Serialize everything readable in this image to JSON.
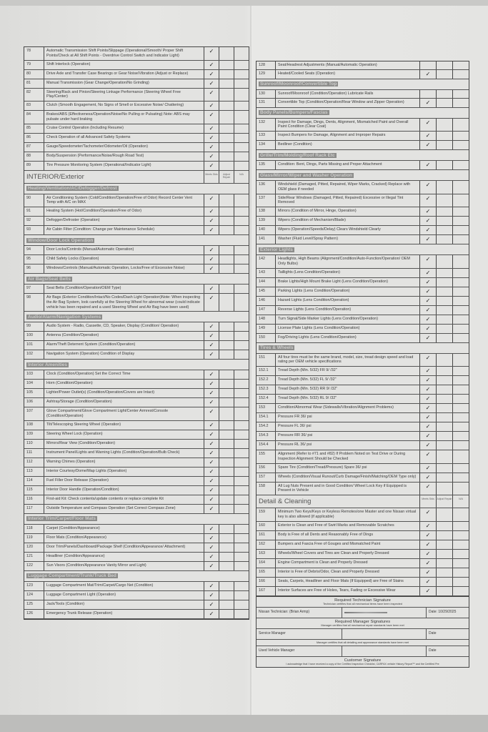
{
  "column_headers": {
    "meets": "Meets Stds",
    "adjust": "Adjust Repair",
    "na": "N/A"
  },
  "check_glyph": "✓",
  "left": [
    {
      "type": "row",
      "num": "78",
      "text": "Automatic Transmission Shift Points/Slippage (Operational/Smooth/ Proper Shift Points/Check at All Shift Points - Overdrive Control Switch and Indicator Light)",
      "check": true
    },
    {
      "type": "row",
      "num": "79",
      "text": "Shift Interlock (Operation)",
      "check": true
    },
    {
      "type": "row",
      "num": "80",
      "text": "Drive Axle and Transfer Case Bearings or Gear Noise/Vibration (Adjust or Replace)",
      "check": true
    },
    {
      "type": "row",
      "num": "81",
      "text": "Manual Transmission (Gear Change/Operation/No Grinding)",
      "check": true
    },
    {
      "type": "row",
      "num": "82",
      "text": "Steering/Rack and Pinion/Steering Linkage Performance (Steering Wheel Free Play/Center)",
      "check": true
    },
    {
      "type": "row",
      "num": "83",
      "text": "Clutch (Smooth Engagement, No Signs of Smell or Excessive Noise/ Chattering)",
      "check": true
    },
    {
      "type": "row",
      "num": "84",
      "text": "Brakes/ABS (Effectiveness/Operation/Noise/No Pulling or Pulsating) Note: ABS may pulsate under hard braking",
      "check": true
    },
    {
      "type": "row",
      "num": "85",
      "text": "Cruise Control Operation (Including Resume)",
      "check": true
    },
    {
      "type": "row",
      "num": "86",
      "text": "Check Operation of all Advanced Safety Systems",
      "check": true
    },
    {
      "type": "row",
      "num": "87",
      "text": "Gauge/Speedometer/Tachometer/Odometer/Oil (Operation)",
      "check": true
    },
    {
      "type": "row",
      "num": "88",
      "text": "Body/Suspension (Performance/Noise/Rough Road Test)",
      "check": true
    },
    {
      "type": "row",
      "num": "89",
      "text": "Tire Pressure Monitoring System (Operational/Indicator Light)",
      "check": true
    },
    {
      "type": "major",
      "text": "INTERIOR/Exterior"
    },
    {
      "type": "section",
      "text": "Heating/Ventilation/AC/Defogger/Defrost"
    },
    {
      "type": "row",
      "num": "90",
      "text": "Air Conditioning System (Cold/Condition/Operation/Free of Odor) Record Center Vent Temp with A/C on MAX",
      "check": true
    },
    {
      "type": "row",
      "num": "91",
      "text": "Heating System (Hot/Condition/Operation/Free of Odor)",
      "check": true
    },
    {
      "type": "row",
      "num": "92",
      "text": "Defogger/Defroster (Operation)",
      "check": true
    },
    {
      "type": "row",
      "num": "93",
      "text": "Air Cabin Filter (Condition: Change per Maintenance Schedule)",
      "check": true
    },
    {
      "type": "section",
      "text": "Window/Door Lock Operation"
    },
    {
      "type": "row",
      "num": "94",
      "text": "Door Locks/Controls (Manual/Automatic Operation)",
      "check": true
    },
    {
      "type": "row",
      "num": "95",
      "text": "Child Safety Locks (Operation)",
      "check": true
    },
    {
      "type": "row",
      "num": "96",
      "text": "Windows/Controls (Manual/Automatic Operation, Locks/Free of Excessive Noise)",
      "check": true
    },
    {
      "type": "section",
      "text": "Air Bags/Seat Belts"
    },
    {
      "type": "row",
      "num": "97",
      "text": "Seat Belts (Condition/Operation/OEM Type)",
      "check": true
    },
    {
      "type": "row",
      "num": "98",
      "text": "Air Bags (Exterior Condition/Intact/No Codes/Dash Light Operation)Note: When inspecting the Air Bag System, look carefully at the Steering Wheel for abnormal wear (could indicate vehicle has been repaired and a used Steering Wheel and Air Bag have been used)",
      "check": true
    },
    {
      "type": "section",
      "text": "Audio/Alarm/Navigation Systems"
    },
    {
      "type": "row",
      "num": "99",
      "text": "Audio System - Radio, Cassette, CD, Speaker, Display (Condition/ Operation)",
      "check": true
    },
    {
      "type": "row",
      "num": "100",
      "text": "Antenna (Condition/Operation)",
      "check": true
    },
    {
      "type": "row",
      "num": "101",
      "text": "Alarm/Theft Deterrent System (Condition/Operation)",
      "check": true
    },
    {
      "type": "row",
      "num": "102",
      "text": "Navigation System (Operation) Condition of Display",
      "check": true
    },
    {
      "type": "section",
      "text": "Interior Amenities"
    },
    {
      "type": "row",
      "num": "103",
      "text": "Clock (Condition/Operation) Set the Correct Time",
      "check": true
    },
    {
      "type": "row",
      "num": "104",
      "text": "Horn (Condition/Operation)",
      "check": true
    },
    {
      "type": "row",
      "num": "105",
      "text": "Lighter/Power Outlet(s) (Condition/Operation/Covers are Intact)",
      "check": true
    },
    {
      "type": "row",
      "num": "106",
      "text": "Ashtray/Storage (Condition/Operation)",
      "check": true
    },
    {
      "type": "row",
      "num": "107",
      "text": "Glove Compartment/Glove Compartment Light/Center Armrest/Console (Condition/Operation)",
      "check": true
    },
    {
      "type": "row",
      "num": "108",
      "text": "Tilt/Telescoping Steering Wheel (Operation)",
      "check": true
    },
    {
      "type": "row",
      "num": "109",
      "text": "Steering Wheel Lock (Operation)",
      "check": true
    },
    {
      "type": "row",
      "num": "110",
      "text": "Mirrors/Rear View (Condition/Operation)",
      "check": true
    },
    {
      "type": "row",
      "num": "111",
      "text": "Instrument Panel/Lights and Warning Lights (Condition/Operation/Bulb Check)",
      "check": true
    },
    {
      "type": "row",
      "num": "112",
      "text": "Warning Chimes (Operation)",
      "check": true
    },
    {
      "type": "row",
      "num": "113",
      "text": "Interior Courtesy/Dome/Map Lights (Operation)",
      "check": true
    },
    {
      "type": "row",
      "num": "114",
      "text": "Fuel Filler Door Release (Operation)",
      "check": true
    },
    {
      "type": "row",
      "num": "115",
      "text": "Interior Door Handle (Operation/Condition)",
      "check": true
    },
    {
      "type": "row",
      "num": "116",
      "text": "First-aid Kit: Check contents/update contents or replace complete Kit",
      "check": true
    },
    {
      "type": "row",
      "num": "117",
      "text": "Outside Temperature and Compass Operation (Set Correct Compass Zone)",
      "check": true
    },
    {
      "type": "section",
      "text": "Interior Trim/Carpet/Floor Mats"
    },
    {
      "type": "row",
      "num": "118",
      "text": "Carpet (Condition/Appearance)",
      "check": true
    },
    {
      "type": "row",
      "num": "119",
      "text": "Floor Mats (Condition/Appearance)",
      "check": true
    },
    {
      "type": "row",
      "num": "120",
      "text": "Door Trim/Panels/Dashboard/Package Shelf (Condition/Appearance/ Attachment)",
      "check": true
    },
    {
      "type": "row",
      "num": "121",
      "text": "Headliner (Condition/Appearance)",
      "check": true
    },
    {
      "type": "row",
      "num": "122",
      "text": "Sun Visors (Condition/Appearance Vanity Mirror and Light)",
      "check": true
    },
    {
      "type": "section",
      "text": "Luggage Compartment/Trunk/Truck Bed"
    },
    {
      "type": "row",
      "num": "123",
      "text": "Luggage Compartment Mat/Trim/Carpet/Cargo Net (Condition)",
      "check": true
    },
    {
      "type": "row",
      "num": "124",
      "text": "Luggage Compartment Light (Operation)",
      "check": true
    },
    {
      "type": "row",
      "num": "125",
      "text": "Jack/Tools (Condition)",
      "check": true
    },
    {
      "type": "row",
      "num": "126",
      "text": "Emergency Trunk Release (Operation)",
      "check": true
    }
  ],
  "right": [
    {
      "type": "row",
      "num": "128",
      "text": "Seat/Headrest Adjustments (Manual/Automatic Operation)",
      "check": false
    },
    {
      "type": "row",
      "num": "129",
      "text": "Heated/Cooled Seats (Operation)",
      "check": true
    },
    {
      "type": "section",
      "text": "Sunroof/Moonroof/Convertible Top"
    },
    {
      "type": "row",
      "num": "130",
      "text": "Sunroof/Moonroof (Condition/Operation) Lubricate Rails",
      "check": false
    },
    {
      "type": "row",
      "num": "131",
      "text": "Convertible Top (Condition/Operation/Rear Window and Zipper Operation)",
      "check": true
    },
    {
      "type": "section",
      "text": "Body Panels/Bumpers/Fascias"
    },
    {
      "type": "row",
      "num": "132",
      "text": "Inspect for Damage, Dings, Dents, Alignment, Mismatched Paint and Overall Paint Condition (Clear Coat)",
      "check": true
    },
    {
      "type": "row",
      "num": "133",
      "text": "Inspect Bumpers for Damage, Alignment and Improper Repairs",
      "check": true
    },
    {
      "type": "row",
      "num": "134",
      "text": "Bedliner (Condition)",
      "check": true
    },
    {
      "type": "section",
      "text": "Grille/Trim/Molding/Roof Rack Etc"
    },
    {
      "type": "row",
      "num": "135",
      "text": "Condition: Bent, Dings, Parts Missing and Proper Attachment",
      "check": true
    },
    {
      "type": "section",
      "text": "Glass/Mirror/Wiper and Washer Operation"
    },
    {
      "type": "row",
      "num": "136",
      "text": "Windshield (Damaged, Pitted, Repaired, Wiper Marks, Cracked) Replace with OEM glass if needed",
      "check": true
    },
    {
      "type": "row",
      "num": "137",
      "text": "Side/Rear Windows (Damaged, Pitted, Repaired) Excessive or Illegal Tint Removed",
      "check": true
    },
    {
      "type": "row",
      "num": "138",
      "text": "Mirrors (Condition of Mirror, Hinge, Operation)",
      "check": true
    },
    {
      "type": "row",
      "num": "139",
      "text": "Wipers (Condition of Mechanism/Blade)",
      "check": true
    },
    {
      "type": "row",
      "num": "140",
      "text": "Wipers (Operation/Speeds/Delay) Clears Windshield Clearly",
      "check": true
    },
    {
      "type": "row",
      "num": "141",
      "text": "Washer (Fluid Level/Spray Pattern)",
      "check": true
    },
    {
      "type": "section",
      "text": "Exterior Lights"
    },
    {
      "type": "row",
      "num": "142",
      "text": "Headlights, High Beams (Alignment/Condition/Auto-Function/Operation/ OEM Only Bulbs)",
      "check": true
    },
    {
      "type": "row",
      "num": "143",
      "text": "Taillights (Lens Condition/Operation)",
      "check": true
    },
    {
      "type": "row",
      "num": "144",
      "text": "Brake Lights/High Mount Brake Light (Lens Condition/Operation)",
      "check": true
    },
    {
      "type": "row",
      "num": "145",
      "text": "Parking Lights (Lens Condition/Operation)",
      "check": true
    },
    {
      "type": "row",
      "num": "146",
      "text": "Hazard Lights (Lens Condition/Operation)",
      "check": true
    },
    {
      "type": "row",
      "num": "147",
      "text": "Reverse Lights (Lens Condition/Operation)",
      "check": true
    },
    {
      "type": "row",
      "num": "148",
      "text": "Turn Signal/Side Marker Lights (Lens Condition/Operation)",
      "check": true
    },
    {
      "type": "row",
      "num": "149",
      "text": "License Plate Lights (Lens Condition/Operation)",
      "check": true
    },
    {
      "type": "row",
      "num": "150",
      "text": "Fog/Driving Lights (Lens Condition/Operation)",
      "check": true
    },
    {
      "type": "section",
      "text": "Tires & Wheels"
    },
    {
      "type": "row",
      "num": "151",
      "text": "All four tires must be the same brand, model, size, tread design speed and load rating per OEM vehicle specifications",
      "check": true
    },
    {
      "type": "row",
      "num": "152.1",
      "text": "Tread Depth (Min. 5/32) FR 9/ /32\"",
      "check": true
    },
    {
      "type": "row",
      "num": "152.2",
      "text": "Tread Depth (Min. 5/32) FL 9/ /32\"",
      "check": true
    },
    {
      "type": "row",
      "num": "152.3",
      "text": "Tread Depth (Min. 5/32) RR 9/ /32\"",
      "check": true
    },
    {
      "type": "row",
      "num": "152.4",
      "text": "Tread Depth (Min. 5/32) RL 9/ /32\"",
      "check": true
    },
    {
      "type": "row",
      "num": "153",
      "text": "Condition/Abnormal Wear (Sidewalls/Vibration/Alignment Problems)",
      "check": true
    },
    {
      "type": "row",
      "num": "154.1",
      "text": "Pressure FR 36/ psi",
      "check": true
    },
    {
      "type": "row",
      "num": "154.2",
      "text": "Pressure FL 36/ psi",
      "check": true
    },
    {
      "type": "row",
      "num": "154.3",
      "text": "Pressure RR 36/ psi",
      "check": true
    },
    {
      "type": "row",
      "num": "154.4",
      "text": "Pressure RL 36/ psi",
      "check": true
    },
    {
      "type": "row",
      "num": "155",
      "text": "Alignment (Refer to #71 and #82) If Problem Noted on Test Drive or During Inspection Alignment Should be Checked",
      "check": true
    },
    {
      "type": "row",
      "num": "156",
      "text": "Spare Tire (Condition/Tread/Pressure) Spare 36/ psi",
      "check": true
    },
    {
      "type": "row",
      "num": "157",
      "text": "Wheels (Condition/Visual Runout/Curb Damage/Finish/Matching/OEM Type only)",
      "check": true
    },
    {
      "type": "row",
      "num": "158",
      "text": "All Lug Nuts Present and in Good Condition/ Wheel Lock Key if Equipped is Present in Vehicle",
      "check": true
    },
    {
      "type": "major",
      "text": "Detail & Cleaning"
    },
    {
      "type": "row",
      "num": "159",
      "text": "Minimum Two Keys/Keys or Keyless Remotes/one Master and one Nissan virtual key is also allowed (if applicable)",
      "check": true
    },
    {
      "type": "row",
      "num": "160",
      "text": "Exterior is Clean and Free of Swirl Marks and Removable Scratches",
      "check": true
    },
    {
      "type": "row",
      "num": "161",
      "text": "Body is Free of all Dents and Reasonably Free of Dings",
      "check": true
    },
    {
      "type": "row",
      "num": "162",
      "text": "Bumpers and Fascia Free of Gouges and Mismatched Paint",
      "check": true
    },
    {
      "type": "row",
      "num": "163",
      "text": "Wheels/Wheel Covers and Tires are Clean and Properly Dressed",
      "check": true
    },
    {
      "type": "row",
      "num": "164",
      "text": "Engine Compartment is Clean and Properly Dressed",
      "check": true
    },
    {
      "type": "row",
      "num": "165",
      "text": "Interior is Free of Debris/Odor, Clean and Properly Dressed",
      "check": true
    },
    {
      "type": "row",
      "num": "166",
      "text": "Seats, Carpets, Headliner and Floor Mats (If Equipped) are Free of Stains",
      "check": true
    },
    {
      "type": "row",
      "num": "167",
      "text": "Interior Surfaces are Free of Holes, Tears, Fading or Excessive Wear",
      "check": true
    }
  ],
  "signatures": {
    "tech_title": "Required Technician Signature",
    "tech_sub": "Technician certifies that all mechanical items have been inspected",
    "tech_label": "Nissan Technician: (Brian Armp)",
    "tech_date": "Date: 10/29/2025",
    "mgr_title": "Required Manager Signatures",
    "mgr_sub": "Manager certifies that all mechanical repair standards have been met",
    "service_label": "Service Manager",
    "date_label": "Date",
    "used_sub": "Manager certifies that all detailing and appearance standards have been met",
    "used_label": "Used Vehicle Manager",
    "customer_title": "Customer Signature",
    "customer_text": "I acknowledge that I have received a copy of the Certified Inspection Checklist, CARFAX vehicle History Report™ and the Certified Pre"
  }
}
